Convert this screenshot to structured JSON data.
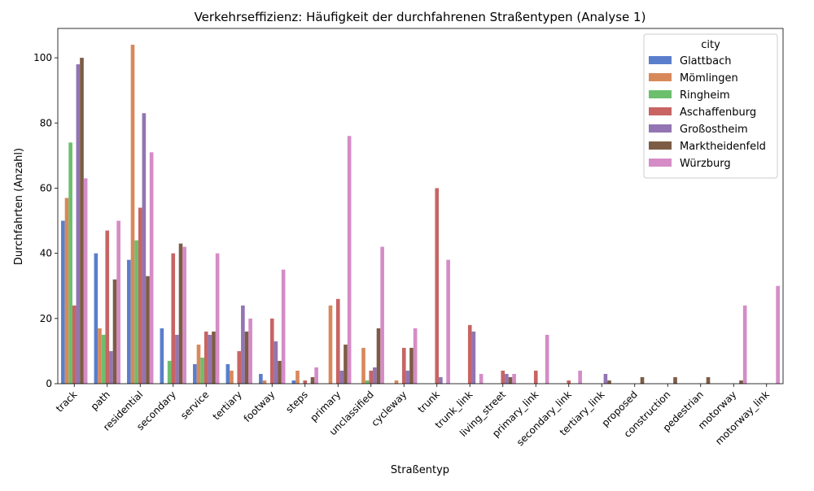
{
  "chart_data": {
    "type": "bar",
    "title": "Verkehrseffizienz: Häufigkeit der durchfahrenen Straßentypen (Analyse 1)",
    "xlabel": "Straßentyp",
    "ylabel": "Durchfahrten (Anzahl)",
    "ylim": [
      0,
      109
    ],
    "yticks": [
      0,
      20,
      40,
      60,
      80,
      100
    ],
    "grid": false,
    "legend": {
      "title": "city",
      "placement": "top-right"
    },
    "categories": [
      "track",
      "path",
      "residential",
      "secondary",
      "service",
      "tertiary",
      "footway",
      "steps",
      "primary",
      "unclassified",
      "cycleway",
      "trunk",
      "trunk_link",
      "living_street",
      "primary_link",
      "secondary_link",
      "tertiary_link",
      "proposed",
      "construction",
      "pedestrian",
      "motorway",
      "motorway_link"
    ],
    "series": [
      {
        "name": "Glattbach",
        "color": "#5a7ecb",
        "values": [
          50,
          40,
          38,
          17,
          6,
          6,
          3,
          1,
          0,
          0,
          0,
          0,
          0,
          0,
          0,
          0,
          0,
          0,
          0,
          0,
          0,
          0
        ]
      },
      {
        "name": "Mömlingen",
        "color": "#d8895a",
        "values": [
          57,
          17,
          104,
          0,
          12,
          4,
          1,
          4,
          24,
          11,
          1,
          0,
          0,
          0,
          0,
          0,
          0,
          0,
          0,
          0,
          0,
          0
        ]
      },
      {
        "name": "Ringheim",
        "color": "#6cbf6c",
        "values": [
          74,
          15,
          44,
          7,
          8,
          0,
          0,
          0,
          0,
          1,
          0,
          0,
          0,
          0,
          0,
          0,
          0,
          0,
          0,
          0,
          0,
          0
        ]
      },
      {
        "name": "Aschaffenburg",
        "color": "#c86464",
        "values": [
          24,
          47,
          54,
          40,
          16,
          10,
          20,
          1,
          26,
          4,
          11,
          60,
          18,
          4,
          4,
          1,
          0,
          0,
          0,
          0,
          0,
          0
        ]
      },
      {
        "name": "Großostheim",
        "color": "#9275b2",
        "values": [
          98,
          10,
          83,
          15,
          15,
          24,
          13,
          0,
          4,
          5,
          4,
          2,
          16,
          3,
          0,
          0,
          3,
          0,
          0,
          0,
          0,
          0
        ]
      },
      {
        "name": "Marktheidenfeld",
        "color": "#7d5c45",
        "values": [
          100,
          32,
          33,
          43,
          16,
          16,
          7,
          2,
          12,
          17,
          11,
          0,
          0,
          2,
          0,
          0,
          1,
          2,
          2,
          2,
          1,
          0
        ]
      },
      {
        "name": "Würzburg",
        "color": "#d58cc6",
        "values": [
          63,
          50,
          71,
          42,
          40,
          20,
          35,
          5,
          76,
          42,
          17,
          38,
          3,
          3,
          15,
          4,
          0,
          0,
          0,
          0,
          24,
          30
        ]
      }
    ]
  }
}
